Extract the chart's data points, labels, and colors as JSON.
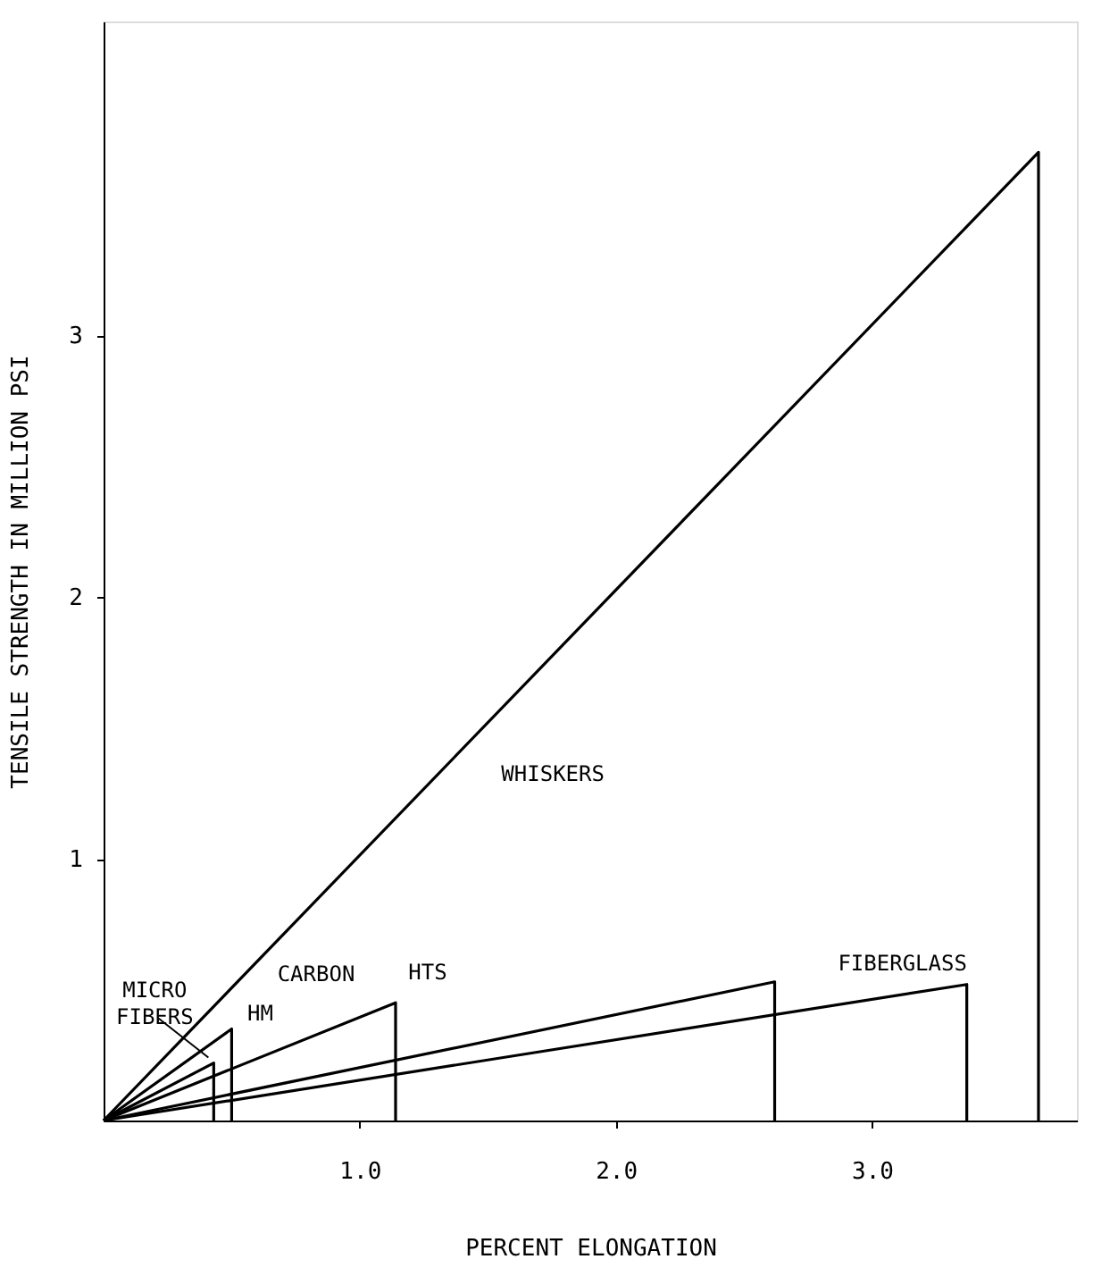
{
  "chart_data": {
    "type": "line",
    "xlabel": "PERCENT ELONGATION",
    "ylabel": "TENSILE STRENGTH IN MILLION PSI",
    "xlim": [
      0,
      3.8
    ],
    "ylim": [
      0,
      4.2
    ],
    "xticks": [
      {
        "value": 1,
        "label": "1.0"
      },
      {
        "value": 2,
        "label": "2.0"
      },
      {
        "value": 3,
        "label": "3.0"
      }
    ],
    "yticks": [
      1,
      2,
      3
    ],
    "grid": false,
    "legend": false,
    "marker": "none",
    "line_style": "solid",
    "series": [
      {
        "name": "WHISKERS",
        "color": "#000000",
        "x": [
          0,
          3.65,
          3.65
        ],
        "values": [
          0,
          3.7,
          0
        ]
      },
      {
        "name": "MICRO FIBERS",
        "color": "#000000",
        "x": [
          0,
          0.43,
          0.43
        ],
        "values": [
          0,
          0.22,
          0
        ]
      },
      {
        "name": "HM",
        "color": "#000000",
        "x": [
          0,
          0.5,
          0.5
        ],
        "values": [
          0,
          0.35,
          0
        ]
      },
      {
        "name": "HTS",
        "color": "#000000",
        "x": [
          0,
          1.14,
          1.14
        ],
        "values": [
          0,
          0.45,
          0
        ]
      },
      {
        "color": "#000000",
        "x": [
          0,
          2.62,
          2.62
        ],
        "values": [
          0,
          0.53,
          0
        ]
      },
      {
        "name": "FIBERGLASS",
        "color": "#000000",
        "x": [
          0,
          3.37,
          3.37
        ],
        "values": [
          0,
          0.52,
          0
        ]
      }
    ],
    "annotations": [
      "CARBON"
    ]
  }
}
